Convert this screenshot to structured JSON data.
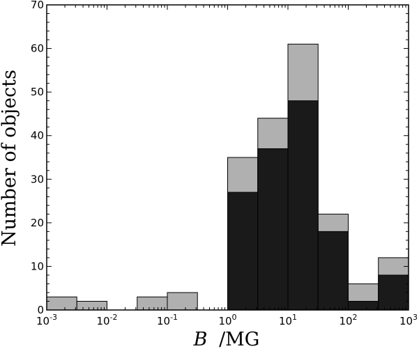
{
  "chart_data": {
    "type": "bar",
    "xscale": "log",
    "xlabel_var": "B",
    "xlabel_unit": "/MG",
    "ylabel": "Number of objects",
    "xlim": [
      0.001,
      1000
    ],
    "ylim": [
      0,
      70
    ],
    "x_tick_labels": [
      {
        "base": "10",
        "exp": "-3"
      },
      {
        "base": "10",
        "exp": "-2"
      },
      {
        "base": "10",
        "exp": "-1"
      },
      {
        "base": "10",
        "exp": "0"
      },
      {
        "base": "10",
        "exp": "1"
      },
      {
        "base": "10",
        "exp": "2"
      },
      {
        "base": "10",
        "exp": "3"
      }
    ],
    "y_ticks": [
      0,
      10,
      20,
      30,
      40,
      50,
      60,
      70
    ],
    "bin_edges_log10": [
      -3,
      -2.5,
      -2,
      -1.5,
      -1,
      -0.5,
      0,
      0.5,
      1,
      1.5,
      2,
      2.5,
      3
    ],
    "series": [
      {
        "color": "#b0b0b0",
        "values": [
          3,
          2,
          0,
          3,
          4,
          0,
          35,
          44,
          61,
          22,
          6,
          12
        ]
      },
      {
        "color": "#1a1a1a",
        "values": [
          0,
          0,
          0,
          0,
          0,
          0,
          27,
          37,
          48,
          18,
          2,
          8
        ]
      }
    ]
  }
}
